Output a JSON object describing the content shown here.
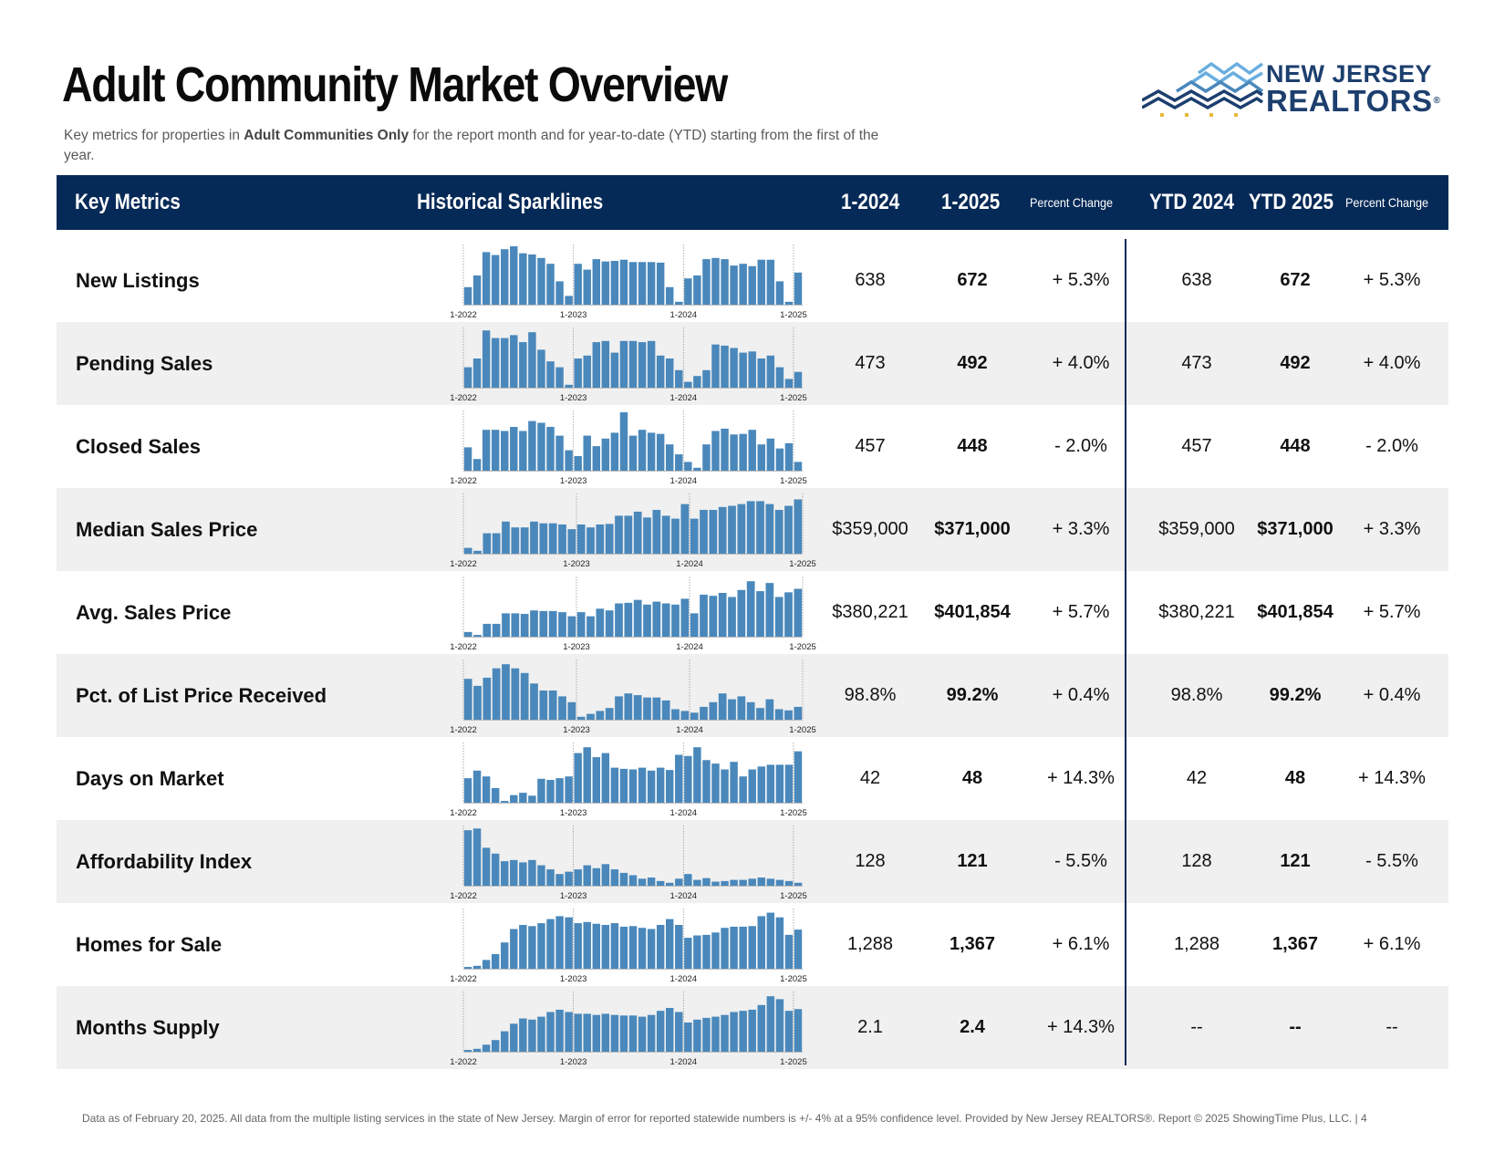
{
  "header": {
    "title": "Adult Community Market Overview",
    "subtitle_pre": "Key metrics for properties in ",
    "subtitle_bold": "Adult Communities Only",
    "subtitle_post": " for the report month and for year-to-date (YTD) starting from the first of the year."
  },
  "logo": {
    "line1": "NEW JERSEY",
    "line2": "REALTORS",
    "mark": "®"
  },
  "columns": {
    "key_metrics": "Key Metrics",
    "sparklines": "Historical Sparklines",
    "m_prev": "1-2024",
    "m_curr": "1-2025",
    "pct_change": "Percent Change",
    "ytd_prev": "YTD 2024",
    "ytd_curr": "YTD 2025",
    "ytd_pct_change": "Percent Change"
  },
  "spark_labels": [
    "1-2022",
    "1-2023",
    "1-2024",
    "1-2025"
  ],
  "rows": [
    {
      "metric": "New Listings",
      "m_prev": "638",
      "m_curr": "672",
      "pct": "+ 5.3%",
      "ytd_prev": "638",
      "ytd_curr": "672",
      "ytd_pct": "+ 5.3%",
      "spark": [
        30,
        50,
        90,
        85,
        95,
        100,
        88,
        86,
        80,
        70,
        40,
        15,
        70,
        60,
        78,
        74,
        75,
        77,
        73,
        73,
        73,
        72,
        30,
        5,
        45,
        50,
        78,
        80,
        78,
        67,
        70,
        66,
        77,
        77,
        40,
        5,
        55
      ]
    },
    {
      "metric": "Pending Sales",
      "m_prev": "473",
      "m_curr": "492",
      "pct": "+ 4.0%",
      "ytd_prev": "473",
      "ytd_curr": "492",
      "ytd_pct": "+ 4.0%",
      "spark": [
        35,
        50,
        98,
        85,
        85,
        90,
        78,
        95,
        65,
        45,
        35,
        5,
        50,
        55,
        78,
        80,
        60,
        80,
        80,
        78,
        80,
        55,
        50,
        30,
        10,
        20,
        30,
        74,
        72,
        68,
        60,
        62,
        50,
        55,
        35,
        15,
        27
      ]
    },
    {
      "metric": "Closed Sales",
      "m_prev": "457",
      "m_curr": "448",
      "pct": "- 2.0%",
      "ytd_prev": "457",
      "ytd_curr": "448",
      "ytd_pct": "- 2.0%",
      "spark": [
        40,
        20,
        70,
        70,
        68,
        75,
        68,
        85,
        82,
        75,
        60,
        35,
        25,
        60,
        42,
        55,
        65,
        100,
        60,
        70,
        65,
        63,
        45,
        28,
        15,
        5,
        45,
        68,
        72,
        62,
        63,
        70,
        45,
        55,
        38,
        47,
        15
      ]
    },
    {
      "metric": "Median Sales Price",
      "m_prev": "$359,000",
      "m_curr": "$371,000",
      "pct": "+ 3.3%",
      "ytd_prev": "$359,000",
      "ytd_curr": "$371,000",
      "ytd_pct": "+ 3.3%",
      "spark": [
        10,
        5,
        35,
        35,
        55,
        45,
        45,
        55,
        52,
        52,
        50,
        42,
        50,
        45,
        50,
        51,
        65,
        65,
        72,
        62,
        75,
        65,
        60,
        85,
        60,
        75,
        75,
        80,
        82,
        85,
        90,
        90,
        85,
        75,
        82,
        93
      ]
    },
    {
      "metric": "Avg. Sales Price",
      "m_prev": "$380,221",
      "m_curr": "$401,854",
      "pct": "+ 5.7%",
      "ytd_prev": "$380,221",
      "ytd_curr": "$401,854",
      "ytd_pct": "+ 5.7%",
      "spark": [
        8,
        3,
        22,
        22,
        40,
        40,
        39,
        45,
        44,
        44,
        42,
        35,
        42,
        35,
        48,
        45,
        57,
        58,
        63,
        55,
        60,
        57,
        55,
        65,
        40,
        72,
        70,
        75,
        68,
        80,
        95,
        78,
        92,
        68,
        76,
        82
      ]
    },
    {
      "metric": "Pct. of List Price Received",
      "m_prev": "98.8%",
      "m_curr": "99.2%",
      "pct": "+ 0.4%",
      "ytd_prev": "98.8%",
      "ytd_curr": "99.2%",
      "ytd_pct": "+ 0.4%",
      "spark": [
        70,
        58,
        72,
        88,
        95,
        88,
        80,
        62,
        50,
        50,
        40,
        30,
        5,
        10,
        15,
        20,
        40,
        45,
        42,
        38,
        38,
        33,
        18,
        15,
        12,
        22,
        30,
        45,
        35,
        40,
        30,
        20,
        35,
        18,
        16,
        22
      ]
    },
    {
      "metric": "Days on Market",
      "m_prev": "42",
      "m_curr": "48",
      "pct": "+ 14.3%",
      "ytd_prev": "42",
      "ytd_curr": "48",
      "ytd_pct": "+ 14.3%",
      "spark": [
        42,
        55,
        45,
        25,
        3,
        13,
        17,
        12,
        41,
        39,
        42,
        45,
        85,
        95,
        78,
        85,
        60,
        58,
        57,
        60,
        55,
        60,
        56,
        82,
        80,
        95,
        73,
        67,
        57,
        70,
        45,
        57,
        62,
        65,
        65,
        65,
        88
      ]
    },
    {
      "metric": "Affordability Index",
      "m_prev": "128",
      "m_curr": "121",
      "pct": "- 5.5%",
      "ytd_prev": "128",
      "ytd_curr": "121",
      "ytd_pct": "- 5.5%",
      "spark": [
        95,
        98,
        65,
        55,
        42,
        44,
        40,
        44,
        35,
        28,
        20,
        24,
        28,
        35,
        30,
        37,
        28,
        22,
        18,
        12,
        14,
        8,
        5,
        12,
        20,
        10,
        13,
        7,
        8,
        10,
        10,
        12,
        14,
        12,
        10,
        8,
        5
      ]
    },
    {
      "metric": "Homes for Sale",
      "m_prev": "1,288",
      "m_curr": "1,367",
      "pct": "+ 6.1%",
      "ytd_prev": "1,288",
      "ytd_curr": "1,367",
      "ytd_pct": "+ 6.1%",
      "spark": [
        3,
        5,
        15,
        25,
        45,
        68,
        75,
        73,
        78,
        85,
        90,
        88,
        78,
        80,
        77,
        75,
        78,
        72,
        73,
        70,
        68,
        75,
        85,
        75,
        53,
        57,
        58,
        62,
        70,
        72,
        72,
        73,
        90,
        96,
        88,
        58,
        67
      ]
    },
    {
      "metric": "Months Supply",
      "m_prev": "2.1",
      "m_curr": "2.4",
      "pct": "+ 14.3%",
      "ytd_prev": "--",
      "ytd_curr": "--",
      "ytd_pct": "--",
      "spark": [
        3,
        5,
        12,
        20,
        35,
        48,
        57,
        55,
        60,
        68,
        72,
        68,
        65,
        65,
        63,
        65,
        63,
        62,
        62,
        60,
        63,
        70,
        75,
        68,
        50,
        55,
        58,
        60,
        63,
        68,
        70,
        72,
        80,
        95,
        90,
        70,
        73
      ]
    }
  ],
  "footer": "Data as of February 20, 2025. All data from the multiple listing services in the state of New Jersey. Margin of error for reported statewide numbers is +/- 4% at a 95% confidence level. Provided by New Jersey REALTORS®. Report © 2025 ShowingTime Plus, LLC. |  4",
  "colors": {
    "navy": "#062a57",
    "bar": "#4a88bb",
    "row_shade": "#f0f0f0",
    "logo_blue": "#1c3f6e",
    "logo_light": "#6aaedf",
    "logo_gold": "#e8b93a"
  }
}
